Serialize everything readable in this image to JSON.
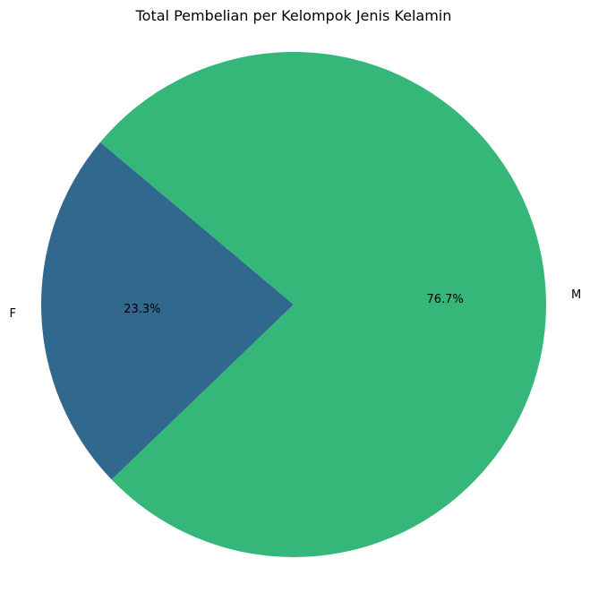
{
  "chart_data": {
    "type": "pie",
    "title": "Total Pembelian per Kelompok Jenis Kelamin",
    "categories": [
      "F",
      "M"
    ],
    "values": [
      23.3,
      76.7
    ],
    "percent_labels": [
      "23.3%",
      "76.7%"
    ],
    "colors": [
      "#31688e",
      "#35b779"
    ],
    "legend": "none",
    "start_angle_deg": 140
  }
}
